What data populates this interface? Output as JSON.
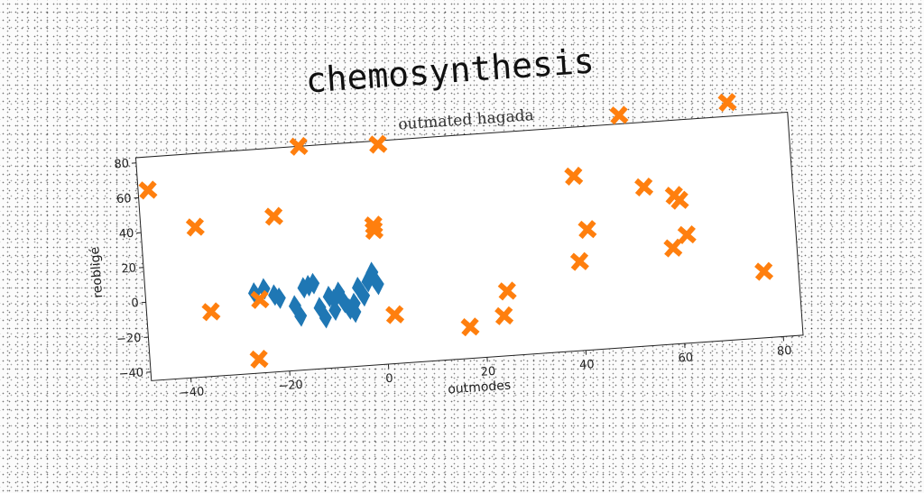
{
  "chart_data": {
    "type": "scatter",
    "title": "chemosynthesis",
    "subtitle": "outmated hagada",
    "xlabel": "outmodes",
    "ylabel": "reobligé",
    "xlim": [
      -48,
      84
    ],
    "ylim": [
      -45,
      83
    ],
    "xticks": [
      -40,
      -20,
      0,
      20,
      40,
      60,
      80
    ],
    "yticks": [
      -40,
      -20,
      0,
      20,
      40,
      60,
      80
    ],
    "grid": false,
    "series": [
      {
        "marker": "diamond",
        "color": "#1f77b4",
        "x": [
          -26,
          -24,
          -22,
          -21,
          -18,
          -17,
          -15,
          -14,
          -13,
          -12,
          -11,
          -10,
          -9,
          -8,
          -7,
          -6,
          -5,
          -4,
          -3,
          -2,
          -1,
          -16,
          -10,
          -6
        ],
        "y": [
          1,
          3,
          -1,
          -3,
          -8,
          -14,
          3,
          4,
          -10,
          -16,
          -4,
          -12,
          -2,
          -8,
          -12,
          -9,
          0,
          -5,
          3,
          8,
          1,
          2,
          -6,
          -14
        ]
      },
      {
        "marker": "x",
        "color": "#ff7f0e",
        "x": [
          -46,
          -37,
          -35,
          -26,
          -25,
          -21,
          -15,
          -1,
          -1,
          1,
          2,
          17,
          24,
          25,
          40,
          40,
          42,
          50,
          54,
          59,
          60,
          61,
          62,
          72,
          77
        ],
        "y": [
          64,
          41,
          -8,
          -37,
          -3,
          44,
          83,
          35,
          32,
          81,
          -17,
          -27,
          -22,
          -8,
          55,
          6,
          24,
          88,
          46,
          10,
          40,
          37,
          17,
          91,
          -7
        ]
      }
    ]
  }
}
